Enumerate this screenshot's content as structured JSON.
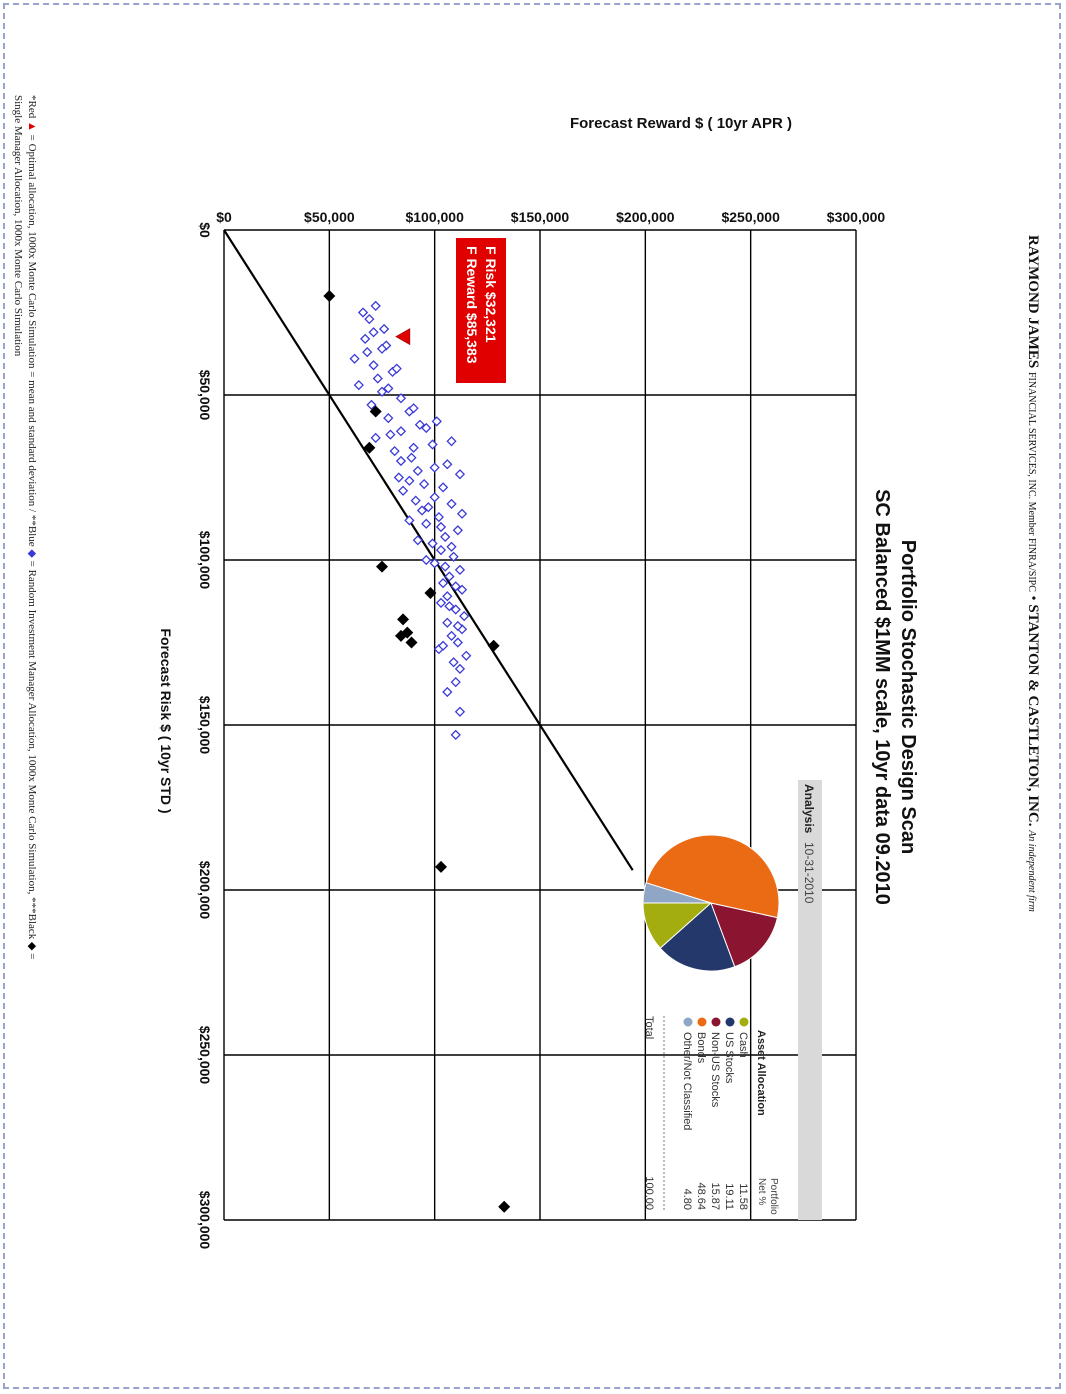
{
  "header": {
    "firm_name": "RAYMOND JAMES",
    "firm_detail": "FINANCIAL SERVICES, INC. Member FINRA/SIPC",
    "separator": "•",
    "partner_name": "STANTON & CASTLETON, INC.",
    "partner_note": "An independent firm"
  },
  "colors": {
    "optimal": "#e00000",
    "random": "#3a3ad8",
    "single": "#000000",
    "label_bg": "#e00000",
    "analysis_bar": "#d9d9d9",
    "frame": "#9aa3cf"
  },
  "chart_data": {
    "type": "scatter",
    "title": "Portfolio Stochastic Design Scan",
    "subtitle": "SC Balanced $1MM scale, 10yr data 09.2010",
    "xlabel": "Forecast Risk $ ( 10yr STD )",
    "ylabel": "Forecast Reward $ ( 10yr APR )",
    "xlim": [
      0,
      300000
    ],
    "ylim": [
      0,
      300000
    ],
    "x_ticks": [
      "$0",
      "$50,000",
      "$100,000",
      "$150,000",
      "$200,000",
      "$250,000",
      "$300,000"
    ],
    "y_ticks": [
      "$0",
      "$50,000",
      "$100,000",
      "$150,000",
      "$200,000",
      "$250,000",
      "$300,000"
    ],
    "grid": true,
    "reference_line": {
      "x": [
        0,
        194000
      ],
      "y": [
        0,
        194000
      ]
    },
    "series": [
      {
        "marker": "diamond-open",
        "points": [
          [
            23000,
            72000
          ],
          [
            25000,
            66000
          ],
          [
            27000,
            69000
          ],
          [
            30000,
            76000
          ],
          [
            31000,
            71000
          ],
          [
            33000,
            67000
          ],
          [
            35000,
            77000
          ],
          [
            37000,
            68000
          ],
          [
            39000,
            62000
          ],
          [
            41000,
            71000
          ],
          [
            43000,
            80000
          ],
          [
            45000,
            73000
          ],
          [
            47000,
            64000
          ],
          [
            49000,
            75000
          ],
          [
            51000,
            84000
          ],
          [
            53000,
            70000
          ],
          [
            55000,
            88000
          ],
          [
            57000,
            78000
          ],
          [
            59000,
            93000
          ],
          [
            61000,
            84000
          ],
          [
            63000,
            72000
          ],
          [
            65000,
            99000
          ],
          [
            67000,
            81000
          ],
          [
            69000,
            89000
          ],
          [
            71000,
            106000
          ],
          [
            73000,
            92000
          ],
          [
            75000,
            83000
          ],
          [
            77000,
            95000
          ],
          [
            79000,
            85000
          ],
          [
            81000,
            100000
          ],
          [
            83000,
            108000
          ],
          [
            85000,
            94000
          ],
          [
            87000,
            102000
          ],
          [
            89000,
            96000
          ],
          [
            91000,
            111000
          ],
          [
            93000,
            105000
          ],
          [
            95000,
            99000
          ],
          [
            97000,
            103000
          ],
          [
            99000,
            109000
          ],
          [
            101000,
            100000
          ],
          [
            103000,
            112000
          ],
          [
            105000,
            107000
          ],
          [
            107000,
            104000
          ],
          [
            109000,
            113000
          ],
          [
            111000,
            106000
          ],
          [
            113000,
            103000
          ],
          [
            115000,
            110000
          ],
          [
            117000,
            114000
          ],
          [
            119000,
            106000
          ],
          [
            121000,
            113000
          ],
          [
            123000,
            108000
          ],
          [
            125000,
            111000
          ],
          [
            127000,
            102000
          ],
          [
            129000,
            115000
          ],
          [
            131000,
            109000
          ],
          [
            133000,
            112000
          ],
          [
            137000,
            110000
          ],
          [
            140000,
            106000
          ],
          [
            146000,
            112000
          ],
          [
            153000,
            110000
          ],
          [
            36000,
            75000
          ],
          [
            42000,
            82000
          ],
          [
            48000,
            78000
          ],
          [
            54000,
            90000
          ],
          [
            60000,
            96000
          ],
          [
            66000,
            90000
          ],
          [
            72000,
            100000
          ],
          [
            78000,
            104000
          ],
          [
            84000,
            97000
          ],
          [
            90000,
            103000
          ],
          [
            96000,
            108000
          ],
          [
            102000,
            105000
          ],
          [
            108000,
            110000
          ],
          [
            114000,
            107000
          ],
          [
            120000,
            111000
          ],
          [
            126000,
            104000
          ],
          [
            62000,
            79000
          ],
          [
            70000,
            84000
          ],
          [
            76000,
            88000
          ],
          [
            82000,
            91000
          ],
          [
            88000,
            88000
          ],
          [
            94000,
            92000
          ],
          [
            100000,
            96000
          ],
          [
            58000,
            101000
          ],
          [
            64000,
            108000
          ],
          [
            74000,
            112000
          ],
          [
            86000,
            113000
          ]
        ]
      },
      {
        "marker": "diamond-filled",
        "points": [
          [
            20000,
            50000
          ],
          [
            55000,
            72000
          ],
          [
            66000,
            69000
          ],
          [
            102000,
            75000
          ],
          [
            110000,
            98000
          ],
          [
            118000,
            85000
          ],
          [
            122000,
            87000
          ],
          [
            123000,
            84000
          ],
          [
            125000,
            89000
          ],
          [
            126000,
            128000
          ],
          [
            193000,
            103000
          ],
          [
            296000,
            133000
          ]
        ]
      },
      {
        "marker": "triangle",
        "points": [
          [
            32321,
            85383
          ]
        ]
      }
    ],
    "optimal_label": {
      "risk": "F Risk $32,321",
      "reward": "F Reward $85,383"
    },
    "pie": {
      "header": "Analysis",
      "date": "10-31-2010",
      "title": "Asset Allocation",
      "col_header_1": "Portfolio",
      "col_header_2": "Net %",
      "slices": [
        {
          "label": "Cash",
          "value": 11.58,
          "display": "11.58",
          "color": "#a3ad10"
        },
        {
          "label": "US Stocks",
          "value": 19.11,
          "display": "19.11",
          "color": "#25386b"
        },
        {
          "label": "Non-US Stocks",
          "value": 15.87,
          "display": "15.87",
          "color": "#8b1530"
        },
        {
          "label": "Bonds",
          "value": 48.64,
          "display": "48.64",
          "color": "#ea6b14"
        },
        {
          "label": "Other/Not Classified",
          "value": 4.8,
          "display": "4.80",
          "color": "#8fa6c4"
        }
      ],
      "total_label": "Total",
      "total_value": "100.00"
    }
  },
  "footnote": {
    "line1_prefix": "*Red",
    "line1_a": "= Optimal allocation, 1000x Monte Carlo Simulation = mean and standard deviation / **Blue",
    "line1_b": "= Random Investment Manager Allocation, 1000x Monte Carlo Simulation, ***Black",
    "line1_c": "=",
    "line2": "Single Manager Allocation, 1000x Monte Carlo Simulation"
  }
}
